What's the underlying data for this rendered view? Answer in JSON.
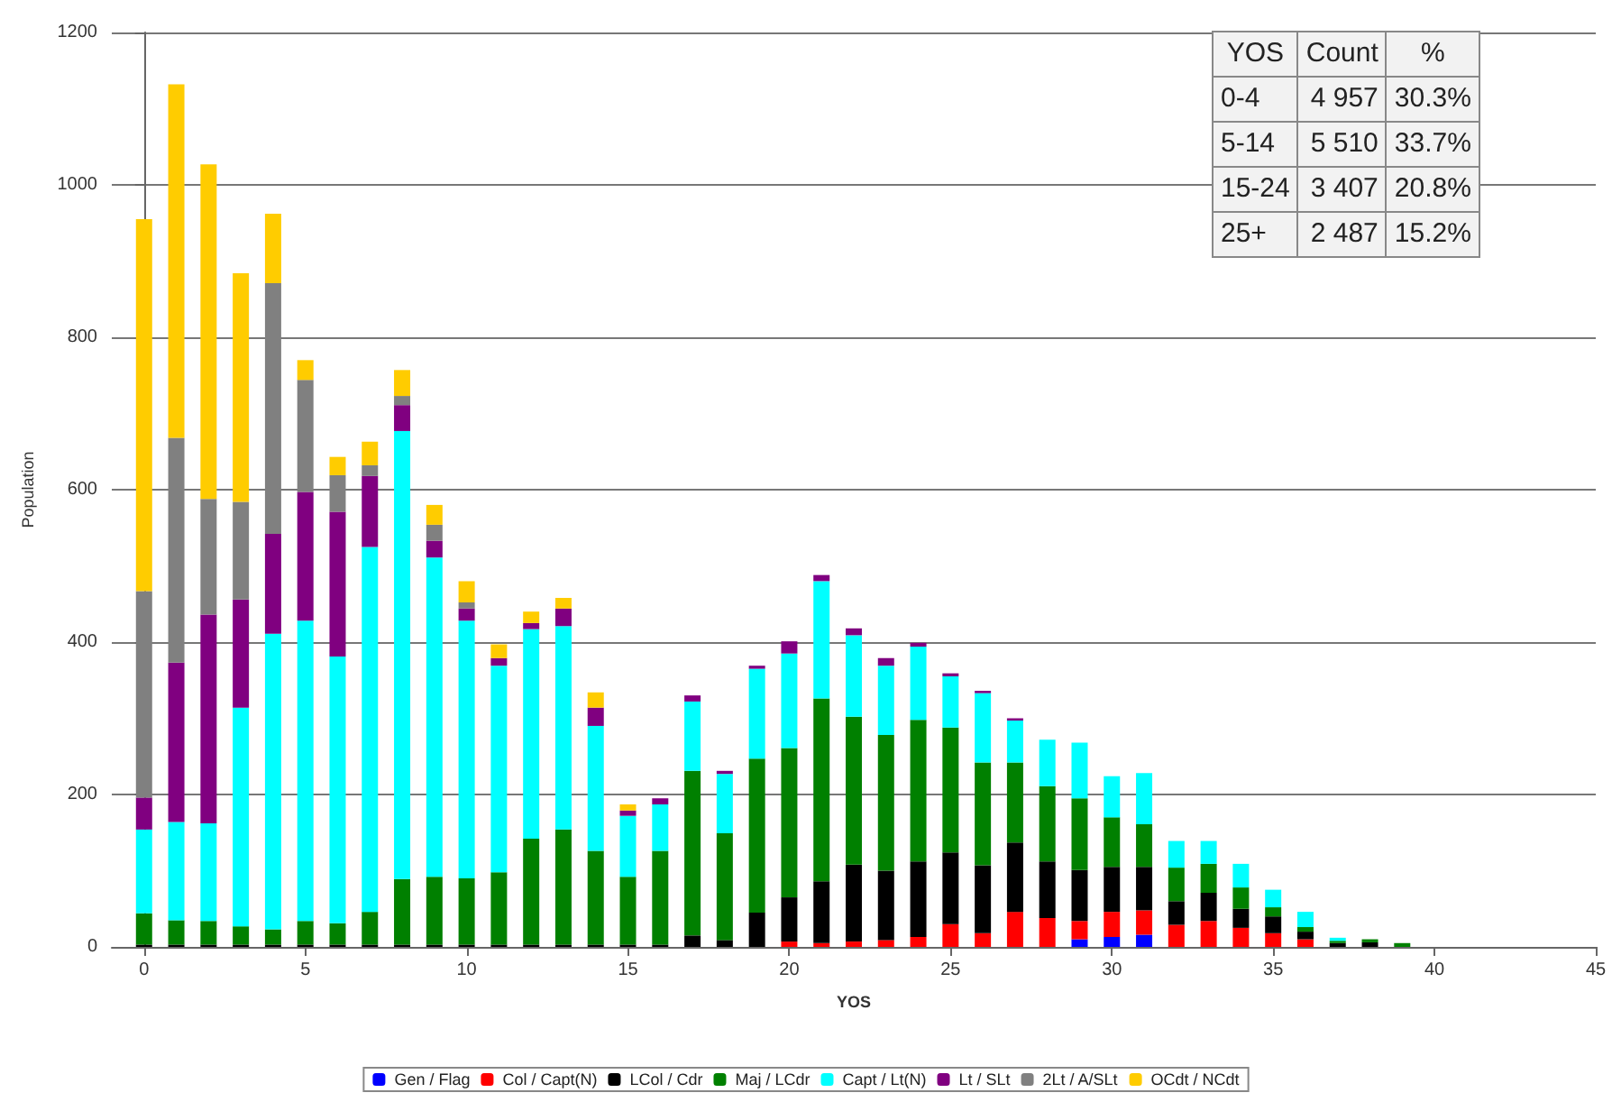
{
  "chart_data": {
    "type": "bar",
    "stacked": true,
    "xlabel": "YOS",
    "ylabel": "Population",
    "x": [
      0,
      1,
      2,
      3,
      4,
      5,
      6,
      7,
      8,
      9,
      10,
      11,
      12,
      13,
      14,
      15,
      16,
      17,
      18,
      19,
      20,
      21,
      22,
      23,
      24,
      25,
      26,
      27,
      28,
      29,
      30,
      31,
      32,
      33,
      34,
      35,
      36,
      37,
      38,
      39
    ],
    "xlim": [
      -1,
      45
    ],
    "xticks": [
      0,
      5,
      10,
      15,
      20,
      25,
      30,
      35,
      40,
      45
    ],
    "ylim": [
      0,
      1200
    ],
    "yticks": [
      0,
      200,
      400,
      600,
      800,
      1000,
      1200
    ],
    "grid": "y",
    "legend": "bottom",
    "annotations": [
      "YOS",
      "Count",
      "%",
      "0-4",
      "4 957",
      "30.3%",
      "5-14",
      "5 510",
      "33.7%",
      "15-24",
      "3 407",
      "20.8%",
      "25+",
      "2 487",
      "15.2%"
    ],
    "series": [
      {
        "name": "Gen / Flag",
        "color": "#0000ff",
        "values": [
          0,
          0,
          0,
          0,
          0,
          0,
          0,
          0,
          0,
          0,
          0,
          0,
          0,
          0,
          0,
          0,
          0,
          0,
          0,
          0,
          0,
          0,
          0,
          0,
          0,
          0,
          0,
          0,
          0,
          10,
          13,
          16,
          0,
          0,
          0,
          0,
          0,
          0,
          0,
          0
        ]
      },
      {
        "name": "Col / Capt(N)",
        "color": "#ff0000",
        "values": [
          0,
          0,
          0,
          0,
          0,
          0,
          0,
          0,
          0,
          0,
          0,
          0,
          0,
          0,
          0,
          0,
          0,
          0,
          0,
          0,
          7,
          5,
          7,
          9,
          13,
          30,
          18,
          46,
          38,
          24,
          33,
          32,
          29,
          34,
          25,
          18,
          10,
          0,
          0,
          0
        ]
      },
      {
        "name": "LCol / Cdr",
        "color": "#000000",
        "values": [
          3,
          3,
          3,
          3,
          3,
          3,
          3,
          3,
          3,
          3,
          3,
          3,
          3,
          3,
          3,
          3,
          3,
          15,
          9,
          45,
          58,
          81,
          101,
          91,
          99,
          94,
          89,
          91,
          74,
          67,
          59,
          57,
          31,
          37,
          25,
          22,
          10,
          5,
          6,
          0
        ]
      },
      {
        "name": "Maj / LCdr",
        "color": "#008000",
        "values": [
          41,
          32,
          31,
          24,
          20,
          31,
          28,
          43,
          86,
          89,
          87,
          95,
          139,
          151,
          123,
          89,
          123,
          216,
          140,
          202,
          196,
          240,
          194,
          178,
          186,
          164,
          135,
          105,
          99,
          94,
          65,
          56,
          44,
          38,
          28,
          12,
          6,
          3,
          4,
          5
        ]
      },
      {
        "name": "Capt / Lt(N)",
        "color": "#00ffff",
        "values": [
          110,
          129,
          128,
          287,
          388,
          394,
          350,
          479,
          588,
          419,
          338,
          271,
          275,
          267,
          164,
          80,
          61,
          91,
          78,
          118,
          124,
          154,
          107,
          91,
          96,
          67,
          91,
          55,
          61,
          73,
          54,
          67,
          35,
          30,
          31,
          23,
          20,
          4,
          0,
          0
        ]
      },
      {
        "name": "Lt / SLt",
        "color": "#800080",
        "values": [
          42,
          209,
          274,
          142,
          131,
          169,
          190,
          93,
          34,
          22,
          16,
          10,
          8,
          23,
          24,
          7,
          8,
          8,
          4,
          4,
          16,
          8,
          9,
          10,
          5,
          4,
          3,
          3,
          0,
          0,
          0,
          0,
          0,
          0,
          0,
          0,
          0,
          0,
          0,
          0
        ]
      },
      {
        "name": "2Lt / A/SLt",
        "color": "#808080",
        "values": [
          271,
          295,
          152,
          128,
          329,
          147,
          48,
          14,
          12,
          21,
          8,
          0,
          0,
          0,
          0,
          0,
          0,
          0,
          0,
          0,
          0,
          0,
          0,
          0,
          0,
          0,
          0,
          0,
          0,
          0,
          0,
          0,
          0,
          0,
          0,
          0,
          0,
          0,
          0,
          0
        ]
      },
      {
        "name": "OCdt / NCdt",
        "color": "#ffcc00",
        "values": [
          488,
          464,
          439,
          300,
          91,
          26,
          24,
          31,
          34,
          26,
          28,
          18,
          15,
          14,
          20,
          8,
          0,
          0,
          0,
          0,
          0,
          0,
          0,
          0,
          0,
          0,
          0,
          0,
          0,
          0,
          0,
          0,
          0,
          0,
          0,
          0,
          0,
          0,
          0,
          0
        ]
      }
    ]
  }
}
